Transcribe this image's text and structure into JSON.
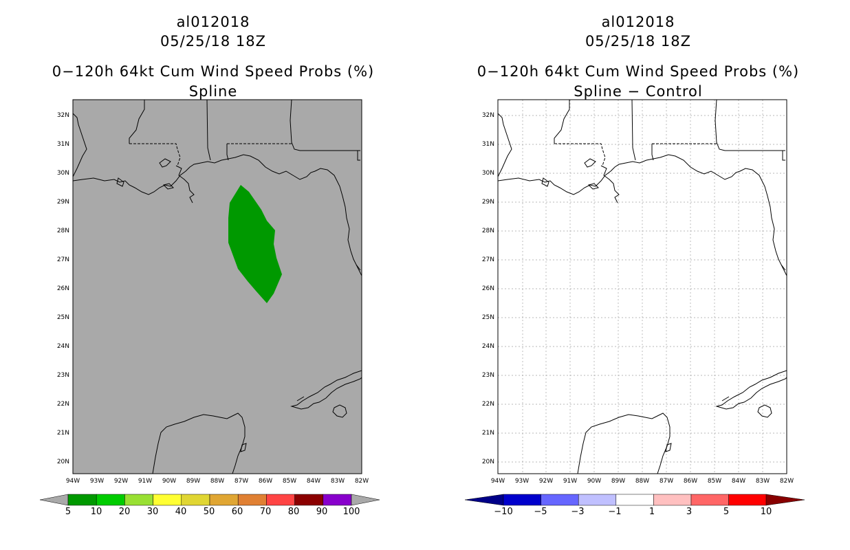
{
  "left_panel": {
    "storm_id": "al012018",
    "datetime": "05/25/18 18Z",
    "product": "0−120h 64kt Cum Wind Speed Probs (%)",
    "subtitle": "Spline",
    "background_color": "#a9a9a9",
    "contour_color": "#009900",
    "colorbar": {
      "labels": [
        "5",
        "10",
        "20",
        "30",
        "40",
        "50",
        "60",
        "70",
        "80",
        "90",
        "100"
      ],
      "colors": [
        "#009900",
        "#00cc00",
        "#99e033",
        "#ffff33",
        "#e0d633",
        "#e0a633",
        "#e08033",
        "#ff4444",
        "#8b0000",
        "#8800cc"
      ],
      "end_color": "#a9a9a9"
    }
  },
  "right_panel": {
    "storm_id": "al012018",
    "datetime": "05/25/18 18Z",
    "product": "0−120h 64kt Cum Wind Speed Probs (%)",
    "subtitle": "Spline − Control",
    "background_color": "#ffffff",
    "colorbar": {
      "labels": [
        "−10",
        "−5",
        "−3",
        "−1",
        "1",
        "3",
        "5",
        "10"
      ],
      "colors": [
        "#0000cc",
        "#6666ff",
        "#c0c0ff",
        "#ffffff",
        "#ffc0c0",
        "#ff6666",
        "#ff0000"
      ],
      "left_end_color": "#000088",
      "right_end_color": "#880000"
    }
  },
  "axes": {
    "lat_labels": [
      "32N",
      "31N",
      "30N",
      "29N",
      "28N",
      "27N",
      "26N",
      "25N",
      "24N",
      "23N",
      "22N",
      "21N",
      "20N"
    ],
    "lon_labels": [
      "94W",
      "93W",
      "92W",
      "91W",
      "90W",
      "89W",
      "88W",
      "87W",
      "86W",
      "85W",
      "84W",
      "83W",
      "82W"
    ]
  }
}
